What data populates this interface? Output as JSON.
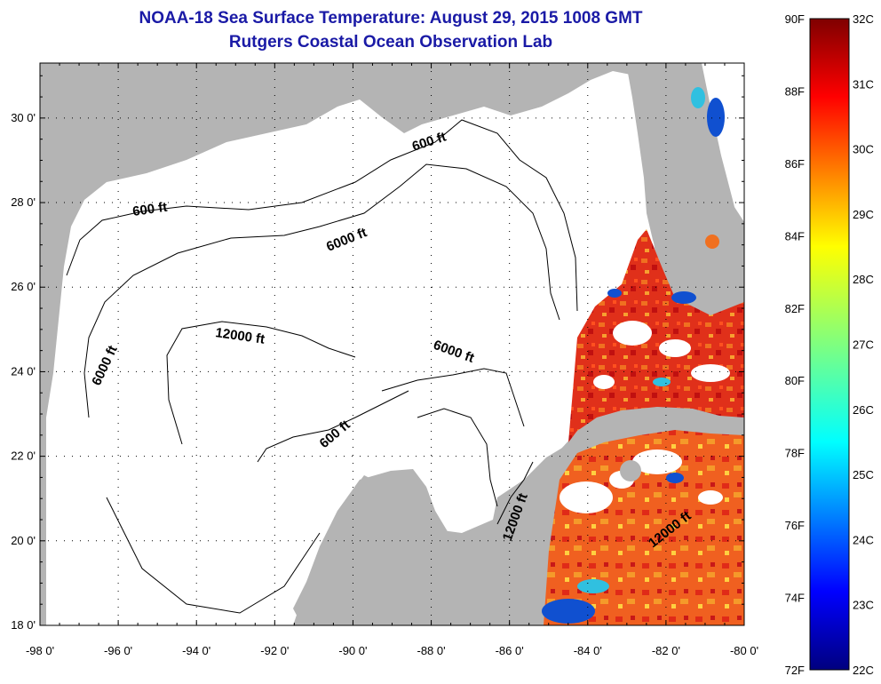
{
  "title": {
    "line1": "NOAA-18 Sea Surface Temperature:  August 29, 2015 1008 GMT",
    "line2": "Rutgers Coastal Ocean Observation Lab"
  },
  "axes": {
    "latitude_labels": [
      "30 0'",
      "28 0'",
      "26 0'",
      "24 0'",
      "22 0'",
      "20 0'",
      "18 0'"
    ],
    "latitude_values": [
      30,
      28,
      26,
      24,
      22,
      20,
      18
    ],
    "longitude_labels": [
      "-98 0'",
      "-96 0'",
      "-94 0'",
      "-92 0'",
      "-90 0'",
      "-88 0'",
      "-86 0'",
      "-84 0'",
      "-82 0'",
      "-80 0'"
    ],
    "longitude_values": [
      -98,
      -96,
      -94,
      -92,
      -90,
      -88,
      -86,
      -84,
      -82,
      -80
    ],
    "lat_range": [
      18,
      31.3
    ],
    "lon_range": [
      -98,
      -80
    ],
    "grid": "dotted"
  },
  "contour_labels": [
    "600 ft",
    "600 ft",
    "6000 ft",
    "6000 ft",
    "12000 ft",
    "6000 ft",
    "600 ft",
    "12000 ft",
    "12000 ft"
  ],
  "colorbar": {
    "fahrenheit_labels": [
      "90F",
      "88F",
      "86F",
      "84F",
      "82F",
      "80F",
      "78F",
      "76F",
      "74F",
      "72F"
    ],
    "celsius_labels": [
      "32C",
      "31C",
      "30C",
      "29C",
      "28C",
      "27C",
      "26C",
      "25C",
      "24C",
      "23C",
      "22C"
    ],
    "range_f": [
      72,
      90
    ],
    "range_c": [
      22,
      32
    ],
    "colormap": "jet"
  },
  "colors": {
    "title": "#1a1aa6",
    "land": "#b4b4b4",
    "ocean_nodata": "#ffffff",
    "sst_warm": "#e0301a",
    "sst_hot": "#c01010",
    "sst_orange": "#f07020",
    "sst_cool": "#1050d0"
  }
}
